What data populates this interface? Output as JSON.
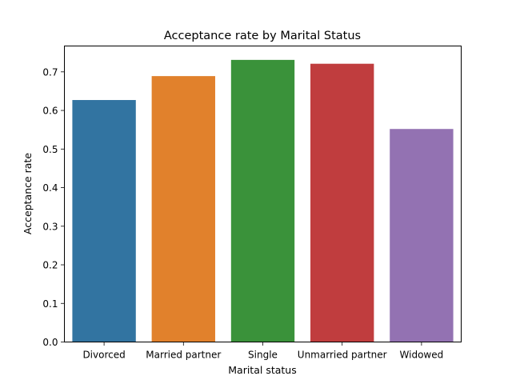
{
  "chart_data": {
    "type": "bar",
    "title": "Acceptance rate by Marital Status",
    "xlabel": "Marital status",
    "ylabel": "Acceptance rate",
    "categories": [
      "Divorced",
      "Married partner",
      "Single",
      "Unmarried partner",
      "Widowed"
    ],
    "values": [
      0.627,
      0.689,
      0.731,
      0.721,
      0.552
    ],
    "colors": [
      "#3274a1",
      "#e1812c",
      "#3a923a",
      "#c03d3e",
      "#9372b2"
    ],
    "ylim": [
      0,
      0.767
    ],
    "yticks": [
      "0.0",
      "0.1",
      "0.2",
      "0.3",
      "0.4",
      "0.5",
      "0.6",
      "0.7"
    ],
    "grid": false,
    "legend": "none"
  }
}
